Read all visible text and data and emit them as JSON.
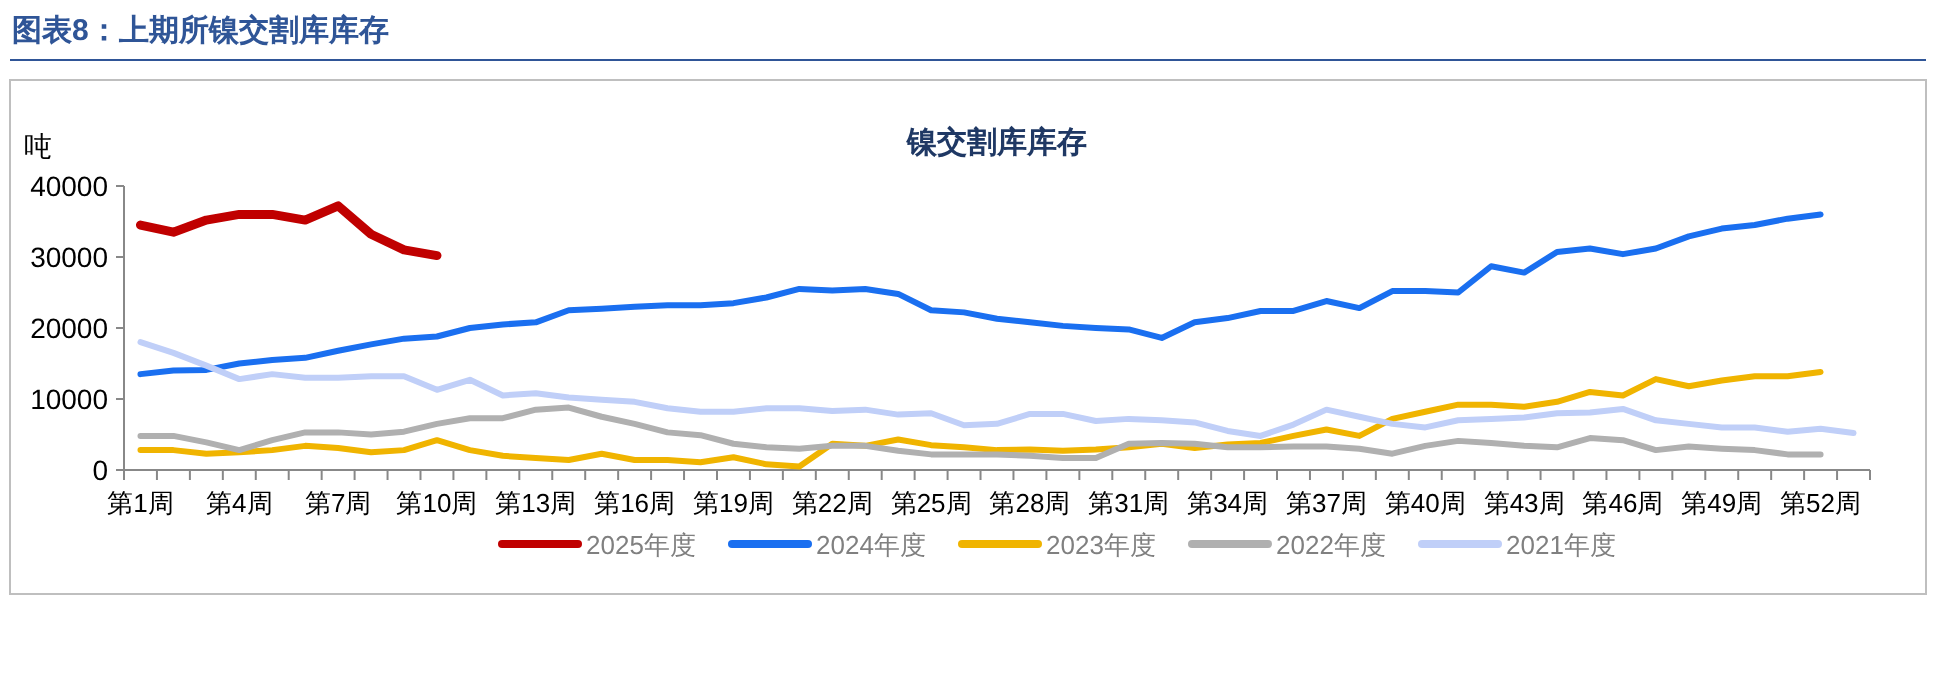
{
  "chart_data": {
    "type": "line",
    "title": "图表8：上期所镍交割库库存",
    "subtitle": "镍交割库库存",
    "ylabel": "吨",
    "categories": [
      "第1周",
      null,
      null,
      "第4周",
      null,
      null,
      "第7周",
      null,
      null,
      "第10周",
      null,
      null,
      "第13周",
      null,
      null,
      "第16周",
      null,
      null,
      "第19周",
      null,
      null,
      "第22周",
      null,
      null,
      "第25周",
      null,
      null,
      "第28周",
      null,
      null,
      "第31周",
      null,
      null,
      "第34周",
      null,
      null,
      "第37周",
      null,
      null,
      "第40周",
      null,
      null,
      "第43周",
      null,
      null,
      "第46周",
      null,
      null,
      "第49周",
      null,
      null,
      "第52周",
      null
    ],
    "ylim": [
      0,
      40000
    ],
    "yticks": [
      0,
      10000,
      20000,
      30000,
      40000
    ],
    "grid": false,
    "legend": "bottom",
    "series": [
      {
        "name": "2025年度",
        "color": "#c00000",
        "values": [
          34500,
          33500,
          35200,
          36000,
          36000,
          35200,
          37200,
          33200,
          31000,
          30200,
          null,
          null,
          null,
          null,
          null,
          null,
          null,
          null,
          null,
          null,
          null,
          null,
          null,
          null,
          null,
          null,
          null,
          null,
          null,
          null,
          null,
          null,
          null,
          null,
          null,
          null,
          null,
          null,
          null,
          null,
          null,
          null,
          null,
          null,
          null,
          null,
          null,
          null,
          null,
          null,
          null,
          null,
          null
        ]
      },
      {
        "name": "2024年度",
        "color": "#1a6ff0",
        "values": [
          13500,
          14000,
          14100,
          15000,
          15500,
          15800,
          16800,
          17700,
          18500,
          18800,
          20000,
          20500,
          20800,
          22500,
          22700,
          23000,
          23200,
          23200,
          23500,
          24300,
          25500,
          25300,
          25500,
          24800,
          22500,
          22200,
          21300,
          20800,
          20300,
          20000,
          19800,
          18600,
          20800,
          21400,
          22400,
          22400,
          23800,
          22800,
          25200,
          25200,
          25000,
          28700,
          27800,
          30700,
          31200,
          30400,
          31200,
          32900,
          34000,
          34500,
          35400,
          36000,
          null
        ]
      },
      {
        "name": "2023年度",
        "color": "#f0b400",
        "values": [
          2800,
          2800,
          2300,
          2500,
          2800,
          3400,
          3100,
          2500,
          2800,
          4200,
          2800,
          2000,
          1700,
          1400,
          2300,
          1400,
          1400,
          1100,
          1800,
          800,
          500,
          3700,
          3400,
          4300,
          3500,
          3200,
          2800,
          2900,
          2700,
          2900,
          3200,
          3700,
          3100,
          3600,
          3800,
          4800,
          5700,
          4800,
          7200,
          8200,
          9200,
          9200,
          8900,
          9600,
          11000,
          10500,
          12800,
          11800,
          12600,
          13200,
          13200,
          13800,
          null
        ]
      },
      {
        "name": "2022年度",
        "color": "#b0b0b0",
        "values": [
          4800,
          4800,
          3900,
          2800,
          4200,
          5300,
          5300,
          5000,
          5400,
          6500,
          7300,
          7300,
          8500,
          8800,
          7500,
          6500,
          5300,
          4900,
          3700,
          3200,
          3000,
          3400,
          3400,
          2700,
          2200,
          2200,
          2200,
          2000,
          1700,
          1700,
          3700,
          3800,
          3700,
          3200,
          3200,
          3300,
          3300,
          3000,
          2300,
          3400,
          4100,
          3800,
          3400,
          3200,
          4500,
          4200,
          2800,
          3300,
          3000,
          2800,
          2200,
          2200,
          null
        ]
      },
      {
        "name": "2021年度",
        "color": "#c0cff8",
        "values": [
          18000,
          16500,
          14700,
          12800,
          13500,
          13000,
          13000,
          13200,
          13200,
          11300,
          12700,
          10500,
          10800,
          10200,
          9900,
          9600,
          8700,
          8200,
          8200,
          8700,
          8700,
          8300,
          8500,
          7800,
          8000,
          6300,
          6500,
          7900,
          7900,
          6900,
          7200,
          7000,
          6700,
          5500,
          4800,
          6400,
          8500,
          7500,
          6500,
          6000,
          7000,
          7200,
          7400,
          8000,
          8100,
          8600,
          7000,
          6500,
          6000,
          6000,
          5400,
          5800,
          5200
        ]
      }
    ]
  }
}
